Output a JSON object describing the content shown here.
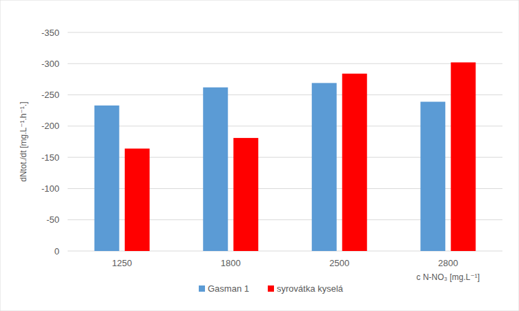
{
  "chart_data": {
    "type": "bar",
    "categories": [
      "1250",
      "1800",
      "2500",
      "2800"
    ],
    "series": [
      {
        "name": "Gasman 1",
        "color": "#5b9bd5",
        "values": [
          -233,
          -262,
          -269,
          -239
        ]
      },
      {
        "name": "syrovátka kyselá",
        "color": "#ff0000",
        "values": [
          -164,
          -181,
          -284,
          -302
        ]
      }
    ],
    "y_label": "dNtot./dt [mg.L⁻¹.h⁻¹.]",
    "x_label": "c N-NO₃ [mg.L⁻¹]",
    "ylim": [
      0,
      -350
    ],
    "yticks": [
      0,
      -50,
      -100,
      -150,
      -200,
      -250,
      -300,
      -350
    ],
    "grid": true,
    "legend": "bottom"
  }
}
